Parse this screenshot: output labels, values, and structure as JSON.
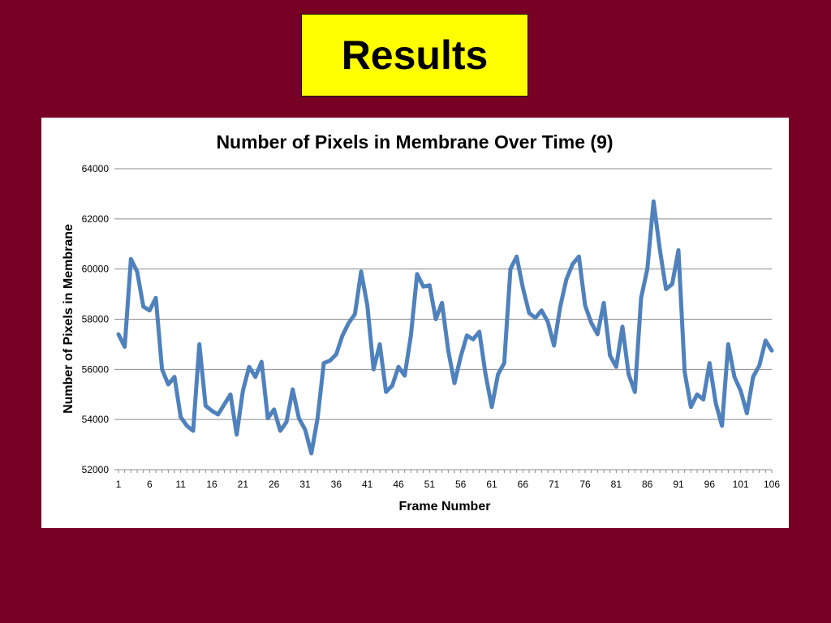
{
  "slide": {
    "title": "Results",
    "background_color": "#780024",
    "title_box_color": "#ffff00"
  },
  "chart_data": {
    "type": "line",
    "title": "Number of Pixels in Membrane Over Time (9)",
    "xlabel": "Frame Number",
    "ylabel": "Number of Pixels in Membrane",
    "ylim": [
      52000,
      64000
    ],
    "xlim": [
      1,
      106
    ],
    "yticks": [
      52000,
      54000,
      56000,
      58000,
      60000,
      62000,
      64000
    ],
    "xticks": [
      1,
      6,
      11,
      16,
      21,
      26,
      31,
      36,
      41,
      46,
      51,
      56,
      61,
      66,
      71,
      76,
      81,
      86,
      91,
      96,
      101,
      106
    ],
    "grid": true,
    "legend": "none",
    "line_color": "#4f81bd",
    "series": [
      {
        "values": [
          57400,
          56900,
          60400,
          59900,
          58500,
          58350,
          58850,
          56000,
          55400,
          55700,
          54100,
          53750,
          53550,
          57000,
          54550,
          54350,
          54200,
          54600,
          55000,
          53400,
          55150,
          56100,
          55700,
          56300,
          54050,
          54400,
          53550,
          53900,
          55200,
          54050,
          53600,
          52650,
          54050,
          56250,
          56350,
          56600,
          57350,
          57850,
          58200,
          59900,
          58550,
          56000,
          57000,
          55100,
          55350,
          56100,
          55750,
          57350,
          59800,
          59300,
          59350,
          58000,
          58650,
          56750,
          55450,
          56500,
          57350,
          57200,
          57500,
          55800,
          54500,
          55800,
          56250,
          60000,
          60500,
          59250,
          58250,
          58050,
          58350,
          57900,
          56950,
          58500,
          59600,
          60200,
          60500,
          58550,
          57850,
          57400,
          58650,
          56550,
          56100,
          57700,
          55800,
          55100,
          58850,
          60000,
          62700,
          60800,
          59200,
          59400,
          60750,
          55900,
          54500,
          55000,
          54800,
          56250,
          54650,
          53750,
          57000,
          55700,
          55150,
          54250,
          55700,
          56150,
          57150,
          56750
        ]
      }
    ]
  }
}
